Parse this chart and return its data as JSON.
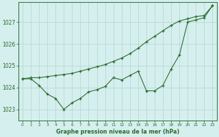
{
  "x": [
    0,
    1,
    2,
    3,
    4,
    5,
    6,
    7,
    8,
    9,
    10,
    11,
    12,
    13,
    14,
    15,
    16,
    17,
    18,
    19,
    20,
    21,
    22,
    23
  ],
  "line1": [
    1024.4,
    1024.4,
    1024.1,
    1023.7,
    1023.5,
    1023.0,
    1023.3,
    1023.5,
    1023.8,
    1023.9,
    1024.05,
    1024.45,
    1024.35,
    1024.55,
    1024.75,
    1023.85,
    1023.85,
    1024.1,
    1024.85,
    1025.5,
    1027.0,
    1027.1,
    1027.2,
    1027.75
  ],
  "line2": [
    1024.4,
    1024.45,
    1024.45,
    1024.5,
    1024.55,
    1024.6,
    1024.65,
    1024.75,
    1024.85,
    1024.95,
    1025.05,
    1025.2,
    1025.35,
    1025.55,
    1025.8,
    1026.1,
    1026.35,
    1026.6,
    1026.85,
    1027.05,
    1027.15,
    1027.25,
    1027.3,
    1027.75
  ],
  "line_color": "#2d6a2d",
  "bg_color": "#d4efee",
  "grid_color": "#b8d8d6",
  "xlabel": "Graphe pression niveau de la mer (hPa)",
  "ylim": [
    1022.5,
    1027.9
  ],
  "yticks": [
    1023,
    1024,
    1025,
    1026,
    1027
  ],
  "xticks": [
    0,
    1,
    2,
    3,
    4,
    5,
    6,
    7,
    8,
    9,
    10,
    11,
    12,
    13,
    14,
    15,
    16,
    17,
    18,
    19,
    20,
    21,
    22,
    23
  ]
}
